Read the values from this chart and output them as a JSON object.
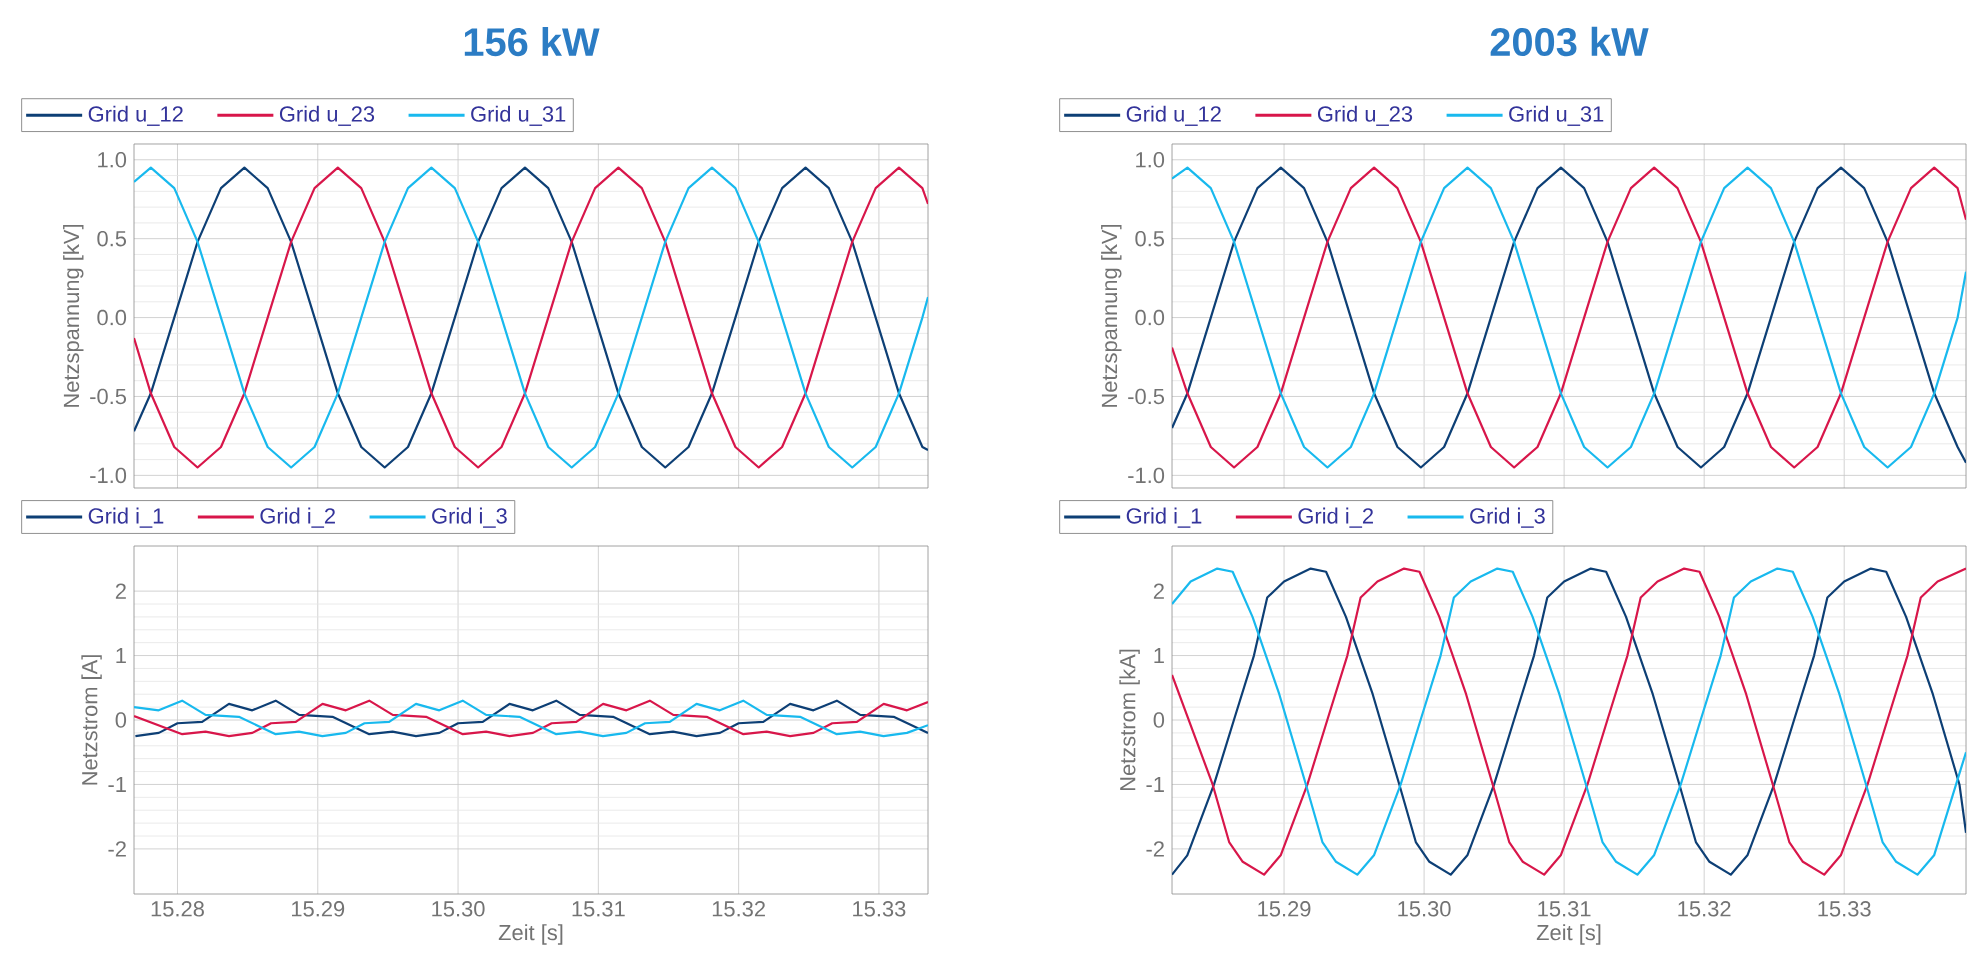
{
  "chart_data": [
    {
      "type": "line",
      "title": "156 kW",
      "ylabel": "Netzspannung [kV]",
      "xlim": [
        15.2769,
        15.3335
      ],
      "ylim": [
        -1.08,
        1.1
      ],
      "xticks": [
        15.28,
        15.29,
        15.3,
        15.31,
        15.32,
        15.33
      ],
      "yticks": [
        {
          "value": -1,
          "label": "-1.0"
        },
        {
          "value": -0.5,
          "label": "-0.5"
        },
        {
          "value": 0,
          "label": "0.0"
        },
        {
          "value": 0.5,
          "label": "0.5"
        },
        {
          "value": 1,
          "label": "1.0"
        }
      ],
      "tick_labels": "y",
      "grid": true,
      "legend": "top",
      "x": [
        15.2769,
        15.2781,
        15.27977,
        15.28143,
        15.2831,
        15.28477,
        15.28643,
        15.2881,
        15.28977,
        15.29143,
        15.2931,
        15.29477,
        15.29643,
        15.2981,
        15.29977,
        15.30143,
        15.3031,
        15.30477,
        15.30643,
        15.3081,
        15.30977,
        15.31143,
        15.3131,
        15.31477,
        15.31643,
        15.3181,
        15.31977,
        15.32143,
        15.3231,
        15.32477,
        15.32643,
        15.3281,
        15.32977,
        15.33143,
        15.3331,
        15.3335
      ],
      "series": [
        {
          "name": "Grid u_12",
          "color": "#0d3f75",
          "values": [
            -0.72,
            -0.48,
            0,
            0.48,
            0.82,
            0.95,
            0.82,
            0.48,
            0,
            -0.48,
            -0.82,
            -0.95,
            -0.82,
            -0.48,
            0,
            0.48,
            0.82,
            0.95,
            0.82,
            0.48,
            0,
            -0.48,
            -0.82,
            -0.95,
            -0.82,
            -0.48,
            0,
            0.48,
            0.82,
            0.95,
            0.82,
            0.48,
            0,
            -0.48,
            -0.82,
            -0.84
          ]
        },
        {
          "name": "Grid u_23",
          "color": "#d8164a",
          "values": [
            -0.13,
            -0.48,
            -0.82,
            -0.95,
            -0.82,
            -0.48,
            0,
            0.48,
            0.82,
            0.95,
            0.82,
            0.48,
            0,
            -0.48,
            -0.82,
            -0.95,
            -0.82,
            -0.48,
            0,
            0.48,
            0.82,
            0.95,
            0.82,
            0.48,
            0,
            -0.48,
            -0.82,
            -0.95,
            -0.82,
            -0.48,
            0,
            0.48,
            0.82,
            0.95,
            0.82,
            0.72
          ]
        },
        {
          "name": "Grid u_31",
          "color": "#18b9ee",
          "values": [
            0.86,
            0.95,
            0.82,
            0.48,
            0,
            -0.48,
            -0.82,
            -0.95,
            -0.82,
            -0.48,
            0,
            0.48,
            0.82,
            0.95,
            0.82,
            0.48,
            0,
            -0.48,
            -0.82,
            -0.95,
            -0.82,
            -0.48,
            0,
            0.48,
            0.82,
            0.95,
            0.82,
            0.48,
            0,
            -0.48,
            -0.82,
            -0.95,
            -0.82,
            -0.48,
            0,
            0.13
          ]
        }
      ]
    },
    {
      "type": "line",
      "title": "2003 kW",
      "ylabel": "Netzspannung [kV]",
      "xlim": [
        15.282,
        15.3387
      ],
      "ylim": [
        -1.08,
        1.1
      ],
      "xticks": [
        15.29,
        15.3,
        15.31,
        15.32,
        15.33
      ],
      "yticks": [
        {
          "value": -1,
          "label": "-1.0"
        },
        {
          "value": -0.5,
          "label": "-0.5"
        },
        {
          "value": 0,
          "label": "0.0"
        },
        {
          "value": 0.5,
          "label": "0.5"
        },
        {
          "value": 1,
          "label": "1.0"
        }
      ],
      "tick_labels": "y",
      "grid": true,
      "legend": "top",
      "x": [
        15.282,
        15.2831,
        15.28477,
        15.28643,
        15.2881,
        15.28977,
        15.29143,
        15.2931,
        15.29477,
        15.29643,
        15.2981,
        15.29977,
        15.30143,
        15.3031,
        15.30477,
        15.30643,
        15.3081,
        15.30977,
        15.31143,
        15.3131,
        15.31477,
        15.31643,
        15.3181,
        15.31977,
        15.32143,
        15.3231,
        15.32477,
        15.32643,
        15.3281,
        15.32977,
        15.33143,
        15.3331,
        15.33477,
        15.33643,
        15.3381,
        15.3387
      ],
      "series": [
        {
          "name": "Grid u_12",
          "color": "#0d3f75",
          "values": [
            -0.7,
            -0.48,
            0,
            0.48,
            0.82,
            0.95,
            0.82,
            0.48,
            0,
            -0.48,
            -0.82,
            -0.95,
            -0.82,
            -0.48,
            0,
            0.48,
            0.82,
            0.95,
            0.82,
            0.48,
            0,
            -0.48,
            -0.82,
            -0.95,
            -0.82,
            -0.48,
            0,
            0.48,
            0.82,
            0.95,
            0.82,
            0.48,
            0,
            -0.48,
            -0.82,
            -0.92
          ]
        },
        {
          "name": "Grid u_23",
          "color": "#d8164a",
          "values": [
            -0.19,
            -0.48,
            -0.82,
            -0.95,
            -0.82,
            -0.48,
            0,
            0.48,
            0.82,
            0.95,
            0.82,
            0.48,
            0,
            -0.48,
            -0.82,
            -0.95,
            -0.82,
            -0.48,
            0,
            0.48,
            0.82,
            0.95,
            0.82,
            0.48,
            0,
            -0.48,
            -0.82,
            -0.95,
            -0.82,
            -0.48,
            0,
            0.48,
            0.82,
            0.95,
            0.82,
            0.62
          ]
        },
        {
          "name": "Grid u_31",
          "color": "#18b9ee",
          "values": [
            0.88,
            0.95,
            0.82,
            0.48,
            0,
            -0.48,
            -0.82,
            -0.95,
            -0.82,
            -0.48,
            0,
            0.48,
            0.82,
            0.95,
            0.82,
            0.48,
            0,
            -0.48,
            -0.82,
            -0.95,
            -0.82,
            -0.48,
            0,
            0.48,
            0.82,
            0.95,
            0.82,
            0.48,
            0,
            -0.48,
            -0.82,
            -0.95,
            -0.82,
            -0.48,
            0,
            0.29
          ]
        }
      ]
    },
    {
      "type": "line",
      "xlabel": "Zeit [s]",
      "ylabel": "Netzstrom [A]",
      "xlim": [
        15.2769,
        15.3335
      ],
      "ylim": [
        -2.7,
        2.7
      ],
      "xticks": [
        15.28,
        15.29,
        {
          "value": 15.3,
          "label": "15.30"
        },
        15.31,
        15.32,
        15.33
      ],
      "yticks": [
        -2,
        -1,
        0,
        1,
        2
      ],
      "grid": true,
      "legend": "top",
      "series": [
        {
          "name": "Grid i_1",
          "color": "#0d3f75",
          "x": [
            15.277,
            15.27867,
            15.28,
            15.28176,
            15.28367,
            15.28533,
            15.287,
            15.28867,
            15.29105,
            15.29367,
            15.29533,
            15.297,
            15.29867,
            15.3,
            15.30176,
            15.30367,
            15.30533,
            15.307,
            15.30867,
            15.31105,
            15.31367,
            15.31533,
            15.317,
            15.31867,
            15.32,
            15.32176,
            15.32367,
            15.32533,
            15.327,
            15.32867,
            15.33105,
            15.3335
          ],
          "values": [
            -0.25,
            -0.2,
            -0.05,
            -0.03,
            0.25,
            0.15,
            0.3,
            0.08,
            0.05,
            -0.22,
            -0.18,
            -0.25,
            -0.2,
            -0.05,
            -0.03,
            0.25,
            0.15,
            0.3,
            0.08,
            0.05,
            -0.22,
            -0.18,
            -0.25,
            -0.2,
            -0.05,
            -0.03,
            0.25,
            0.15,
            0.3,
            0.08,
            0.05,
            -0.2
          ]
        },
        {
          "name": "Grid i_2",
          "color": "#d8164a",
          "x": [
            15.2769,
            15.28034,
            15.282,
            15.28367,
            15.28534,
            15.28667,
            15.28843,
            15.29034,
            15.292,
            15.29367,
            15.29534,
            15.29772,
            15.30034,
            15.302,
            15.30367,
            15.30534,
            15.30667,
            15.30843,
            15.31034,
            15.312,
            15.31367,
            15.31534,
            15.31772,
            15.32034,
            15.322,
            15.32367,
            15.32534,
            15.32667,
            15.32843,
            15.33034,
            15.332,
            15.3335
          ],
          "values": [
            0.06,
            -0.22,
            -0.18,
            -0.25,
            -0.2,
            -0.05,
            -0.03,
            0.25,
            0.15,
            0.3,
            0.08,
            0.05,
            -0.22,
            -0.18,
            -0.25,
            -0.2,
            -0.05,
            -0.03,
            0.25,
            0.15,
            0.3,
            0.08,
            0.05,
            -0.22,
            -0.18,
            -0.25,
            -0.2,
            -0.05,
            -0.03,
            0.25,
            0.15,
            0.28
          ]
        },
        {
          "name": "Grid i_3",
          "color": "#18b9ee",
          "x": [
            15.2769,
            15.27866,
            15.28033,
            15.282,
            15.28438,
            15.287,
            15.28866,
            15.29033,
            15.292,
            15.29333,
            15.29509,
            15.297,
            15.29866,
            15.30033,
            15.302,
            15.30438,
            15.307,
            15.30866,
            15.31033,
            15.312,
            15.31333,
            15.31509,
            15.317,
            15.31866,
            15.32033,
            15.322,
            15.32438,
            15.327,
            15.32866,
            15.33033,
            15.332,
            15.3335
          ],
          "values": [
            0.2,
            0.15,
            0.3,
            0.08,
            0.05,
            -0.22,
            -0.18,
            -0.25,
            -0.2,
            -0.05,
            -0.03,
            0.25,
            0.15,
            0.3,
            0.08,
            0.05,
            -0.22,
            -0.18,
            -0.25,
            -0.2,
            -0.05,
            -0.03,
            0.25,
            0.15,
            0.3,
            0.08,
            0.05,
            -0.22,
            -0.18,
            -0.25,
            -0.2,
            -0.08
          ]
        }
      ]
    },
    {
      "type": "line",
      "xlabel": "Zeit [s]",
      "ylabel": "Netzstrom [kA]",
      "xlim": [
        15.282,
        15.3387
      ],
      "ylim": [
        -2.7,
        2.7
      ],
      "xticks": [
        15.29,
        {
          "value": 15.3,
          "label": "15.30"
        },
        15.31,
        15.32,
        15.33
      ],
      "yticks": [
        -2,
        -1,
        0,
        1,
        2
      ],
      "grid": true,
      "legend": "top",
      "series": [
        {
          "name": "Grid i_1",
          "color": "#0d3f75",
          "x": [
            15.282,
            15.28309,
            15.285,
            15.28642,
            15.28785,
            15.2888,
            15.29,
            15.2919,
            15.293,
            15.29442,
            15.29633,
            15.29823,
            15.29942,
            15.30038,
            15.3019,
            15.30309,
            15.305,
            15.30642,
            15.30785,
            15.3088,
            15.31,
            15.3119,
            15.313,
            15.31442,
            15.31633,
            15.31823,
            15.31942,
            15.32038,
            15.3219,
            15.32309,
            15.325,
            15.32642,
            15.32785,
            15.3288,
            15.33,
            15.3319,
            15.333,
            15.33442,
            15.33633,
            15.33823,
            15.3387
          ],
          "values": [
            -2.4,
            -2.1,
            -1.0,
            0,
            1.0,
            1.9,
            2.15,
            2.35,
            2.3,
            1.6,
            0.4,
            -1.0,
            -1.9,
            -2.2,
            -2.4,
            -2.1,
            -1.0,
            0,
            1.0,
            1.9,
            2.15,
            2.35,
            2.3,
            1.6,
            0.4,
            -1.0,
            -1.9,
            -2.2,
            -2.4,
            -2.1,
            -1.0,
            0,
            1.0,
            1.9,
            2.15,
            2.35,
            2.3,
            1.6,
            0.4,
            -1.0,
            -1.75
          ]
        },
        {
          "name": "Grid i_2",
          "color": "#d8164a",
          "x": [
            15.282,
            15.2849,
            15.28609,
            15.28705,
            15.28857,
            15.28976,
            15.29167,
            15.29309,
            15.29452,
            15.29547,
            15.29667,
            15.29857,
            15.29967,
            15.30109,
            15.303,
            15.3049,
            15.30609,
            15.30705,
            15.30857,
            15.30976,
            15.31167,
            15.31309,
            15.31452,
            15.31547,
            15.31667,
            15.31857,
            15.31967,
            15.32109,
            15.323,
            15.3249,
            15.32609,
            15.32705,
            15.32857,
            15.32976,
            15.33167,
            15.33309,
            15.33452,
            15.33547,
            15.33667,
            15.3387
          ],
          "values": [
            0.7,
            -1.0,
            -1.9,
            -2.2,
            -2.4,
            -2.1,
            -1.0,
            0,
            1.0,
            1.9,
            2.15,
            2.35,
            2.3,
            1.6,
            0.4,
            -1.0,
            -1.9,
            -2.2,
            -2.4,
            -2.1,
            -1.0,
            0,
            1.0,
            1.9,
            2.15,
            2.35,
            2.3,
            1.6,
            0.4,
            -1.0,
            -1.9,
            -2.2,
            -2.4,
            -2.1,
            -1.0,
            0,
            1.0,
            1.9,
            2.15,
            2.35
          ]
        },
        {
          "name": "Grid i_3",
          "color": "#18b9ee",
          "x": [
            15.282,
            15.28333,
            15.28523,
            15.28633,
            15.28775,
            15.28966,
            15.29156,
            15.29275,
            15.29371,
            15.29523,
            15.29642,
            15.29833,
            15.29975,
            15.30118,
            15.30213,
            15.30333,
            15.30523,
            15.30633,
            15.30775,
            15.30966,
            15.31156,
            15.31275,
            15.31371,
            15.31523,
            15.31642,
            15.31833,
            15.31975,
            15.32118,
            15.32213,
            15.32333,
            15.32523,
            15.32633,
            15.32775,
            15.32966,
            15.33156,
            15.33275,
            15.33371,
            15.33523,
            15.33642,
            15.3387
          ],
          "values": [
            1.8,
            2.15,
            2.35,
            2.3,
            1.6,
            0.4,
            -1.0,
            -1.9,
            -2.2,
            -2.4,
            -2.1,
            -1.0,
            0,
            1.0,
            1.9,
            2.15,
            2.35,
            2.3,
            1.6,
            0.4,
            -1.0,
            -1.9,
            -2.2,
            -2.4,
            -2.1,
            -1.0,
            0,
            1.0,
            1.9,
            2.15,
            2.35,
            2.3,
            1.6,
            0.4,
            -1.0,
            -1.9,
            -2.2,
            -2.4,
            -2.1,
            -0.5
          ]
        }
      ]
    }
  ]
}
